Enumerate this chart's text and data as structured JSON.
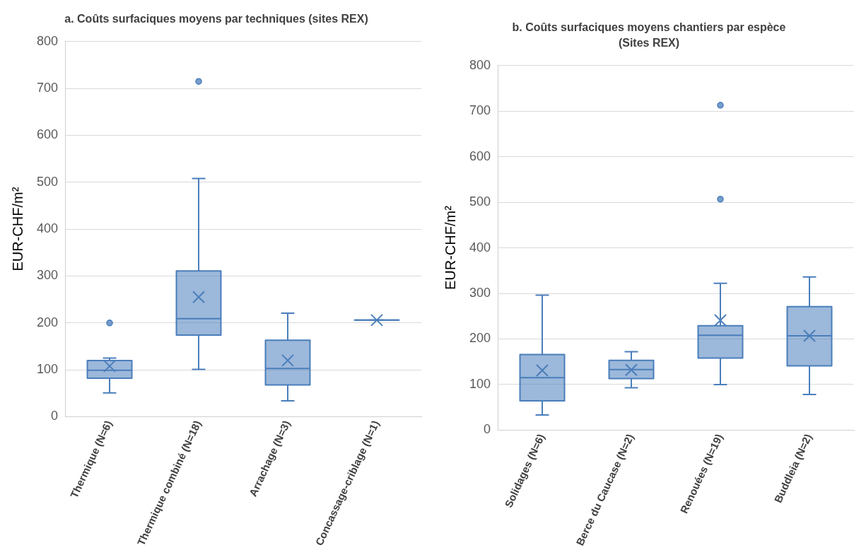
{
  "chart_data": [
    {
      "type": "box",
      "title": "a. Coûts surfaciques moyens par techniques (sites REX)",
      "ylabel": "EUR-CHF/m²",
      "categories": [
        "Thermique (N=6)",
        "Thermique combiné (N=18)",
        "Arrachage (N=3)",
        "Concassage-criblage (N=1)"
      ],
      "ylim": [
        0,
        800
      ],
      "yticks": [
        0,
        100,
        200,
        300,
        400,
        500,
        600,
        700,
        800
      ],
      "grid": "y",
      "series": [
        {
          "color": "#4a7ebb",
          "boxes": [
            {
              "low": 51,
              "q1": 82,
              "median": 99,
              "q3": 120,
              "high": 125,
              "mean": 108,
              "outliers": [
                200
              ]
            },
            {
              "low": 101,
              "q1": 174,
              "median": 209,
              "q3": 311,
              "high": 508,
              "mean": 255,
              "outliers": [
                715
              ]
            },
            {
              "low": 34,
              "q1": 68,
              "median": 103,
              "q3": 163,
              "high": 221,
              "mean": 120
            },
            {
              "low": 206,
              "q1": 206,
              "median": 206,
              "q3": 206,
              "high": 206,
              "mean": 206
            }
          ]
        }
      ]
    },
    {
      "type": "box",
      "title": "b. Coûts surfaciques moyens chantiers par espèce (Sites REX)",
      "ylabel": "EUR-CHF/m²",
      "categories": [
        "Solidages (N=6)",
        "Berce du Caucase (N=2)",
        "Renouées (N=19)",
        "Buddleia (N=2)"
      ],
      "ylim": [
        0,
        800
      ],
      "yticks": [
        0,
        100,
        200,
        300,
        400,
        500,
        600,
        700,
        800
      ],
      "grid": "y",
      "series": [
        {
          "color": "#4a7ebb",
          "boxes": [
            {
              "low": 33,
              "q1": 64,
              "median": 115,
              "q3": 166,
              "high": 296,
              "mean": 131
            },
            {
              "low": 93,
              "q1": 113,
              "median": 133,
              "q3": 153,
              "high": 172,
              "mean": 132
            },
            {
              "low": 100,
              "q1": 158,
              "median": 208,
              "q3": 229,
              "high": 322,
              "mean": 241,
              "outliers": [
                507,
                713
              ]
            },
            {
              "low": 78,
              "q1": 141,
              "median": 207,
              "q3": 271,
              "high": 336,
              "mean": 207
            }
          ]
        }
      ]
    }
  ]
}
